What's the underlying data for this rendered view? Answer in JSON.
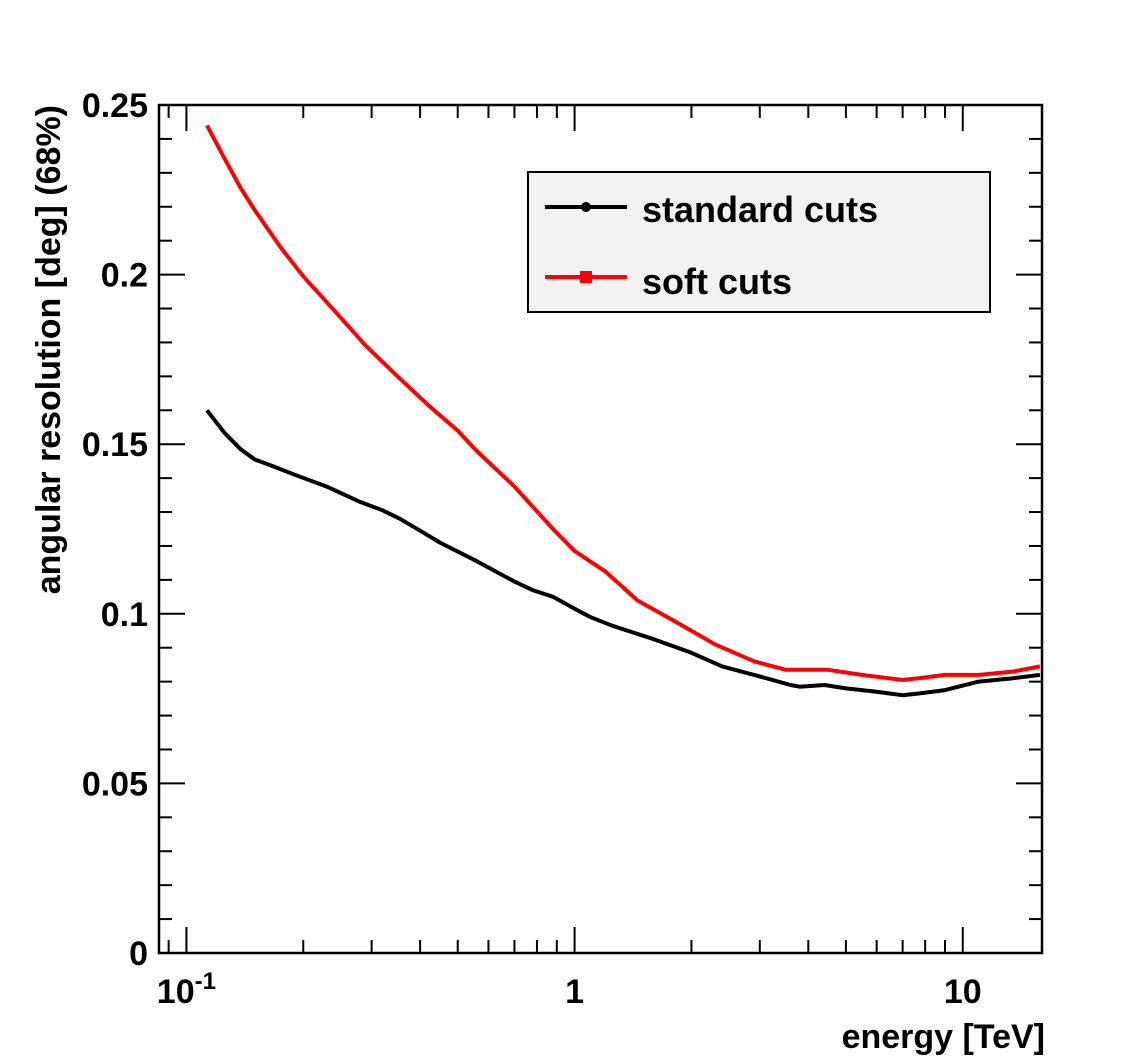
{
  "chart_data": {
    "type": "line",
    "title": "",
    "xlabel": "energy [TeV]",
    "ylabel": "angular resolution [deg] (68%)",
    "xscale": "log",
    "xlim": [
      0.085,
      16
    ],
    "ylim": [
      0,
      0.25
    ],
    "grid": false,
    "legend_position": "top-right",
    "x_tick_labels": [
      {
        "value": 0.1,
        "base": "10",
        "exp": "-1"
      },
      {
        "value": 1,
        "base": "1",
        "exp": ""
      },
      {
        "value": 10,
        "base": "10",
        "exp": ""
      }
    ],
    "y_tick_labels": [
      {
        "value": 0,
        "label": "0"
      },
      {
        "value": 0.05,
        "label": "0.05"
      },
      {
        "value": 0.1,
        "label": "0.1"
      },
      {
        "value": 0.15,
        "label": "0.15"
      },
      {
        "value": 0.2,
        "label": "0.2"
      },
      {
        "value": 0.25,
        "label": "0.25"
      }
    ],
    "series": [
      {
        "name": "standard cuts",
        "color": "#000000",
        "marker": "circle",
        "x": [
          0.113,
          0.125,
          0.138,
          0.15,
          0.163,
          0.19,
          0.23,
          0.28,
          0.32,
          0.355,
          0.4,
          0.45,
          0.56,
          0.7,
          0.78,
          0.88,
          1.0,
          1.1,
          1.25,
          1.6,
          2.0,
          2.4,
          2.9,
          3.6,
          3.8,
          4.4,
          5.0,
          6.0,
          7.0,
          7.7,
          9.0,
          11.0,
          13.5,
          15.8
        ],
        "y": [
          0.16,
          0.1535,
          0.1485,
          0.1455,
          0.144,
          0.141,
          0.1375,
          0.133,
          0.1305,
          0.128,
          0.1245,
          0.121,
          0.1155,
          0.1095,
          0.107,
          0.105,
          0.1015,
          0.099,
          0.0965,
          0.0925,
          0.0885,
          0.0845,
          0.082,
          0.079,
          0.0785,
          0.079,
          0.078,
          0.077,
          0.076,
          0.0765,
          0.0775,
          0.08,
          0.081,
          0.082
        ]
      },
      {
        "name": "soft cuts",
        "color": "#ff0000",
        "marker": "square",
        "x": [
          0.113,
          0.125,
          0.138,
          0.15,
          0.175,
          0.2,
          0.24,
          0.29,
          0.35,
          0.42,
          0.5,
          0.56,
          0.7,
          0.88,
          1.0,
          1.2,
          1.45,
          1.8,
          2.3,
          2.9,
          3.5,
          4.0,
          4.5,
          5.5,
          7.0,
          7.7,
          9.0,
          11.0,
          13.5,
          15.8
        ],
        "y": [
          0.244,
          0.2345,
          0.2255,
          0.219,
          0.208,
          0.1995,
          0.1895,
          0.179,
          0.17,
          0.1615,
          0.154,
          0.148,
          0.1375,
          0.125,
          0.1185,
          0.1125,
          0.104,
          0.098,
          0.091,
          0.086,
          0.0835,
          0.0835,
          0.0835,
          0.082,
          0.0805,
          0.081,
          0.082,
          0.082,
          0.083,
          0.0845
        ]
      }
    ]
  }
}
